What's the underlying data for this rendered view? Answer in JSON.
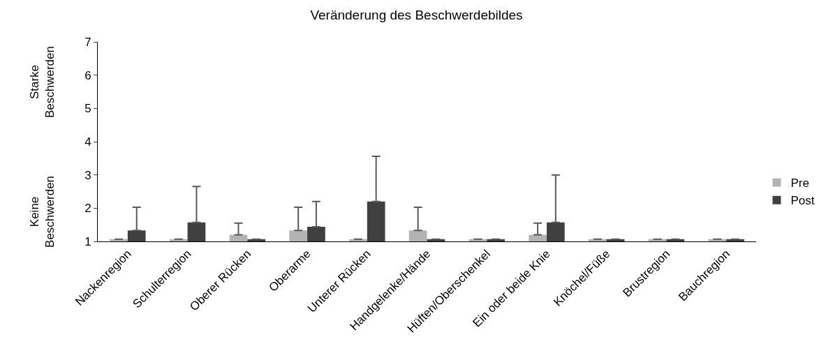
{
  "chart_data": {
    "type": "bar",
    "title": "Veränderung des Beschwerdebildes",
    "categories": [
      "Nackenregion",
      "Schulterregion",
      "Oberer Rücken",
      "Oberarme",
      "Unterer Rücken",
      "Handgelenke/Hände",
      "Hüften/Oberschenkel",
      "Ein oder beide Knie",
      "Knöchel/Füße",
      "Brustregion",
      "Bauchregion"
    ],
    "series": [
      {
        "name": "Pre",
        "color": "#b3b3b3",
        "values": [
          1.07,
          1.07,
          1.2,
          1.33,
          1.07,
          1.33,
          1.07,
          1.2,
          1.07,
          1.07,
          1.07
        ],
        "errors": [
          null,
          null,
          [
            1.2,
            1.55
          ],
          [
            1.33,
            2.03
          ],
          null,
          [
            1.33,
            2.03
          ],
          null,
          [
            1.2,
            1.55
          ],
          null,
          null,
          null
        ]
      },
      {
        "name": "Post",
        "color": "#404040",
        "values": [
          1.33,
          1.57,
          1.07,
          1.44,
          2.2,
          1.07,
          1.07,
          1.57,
          1.07,
          1.07,
          1.07
        ],
        "errors": [
          [
            1.33,
            2.03
          ],
          [
            1.57,
            2.65
          ],
          null,
          [
            1.44,
            2.2
          ],
          [
            2.2,
            3.56
          ],
          null,
          null,
          [
            1.57,
            3.0
          ],
          null,
          null,
          null
        ]
      }
    ],
    "ylim": [
      1,
      7
    ],
    "yticks": [
      1,
      2,
      3,
      4,
      5,
      6,
      7
    ],
    "legend": "right",
    "annotations": [
      "Starke Beschwerden",
      "Keine Beschwerden"
    ]
  }
}
